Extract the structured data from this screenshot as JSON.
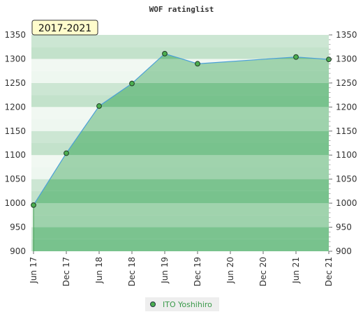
{
  "chart_data": {
    "type": "area",
    "title": "WOF ratinglist",
    "period_label": "2017-2021",
    "categories": [
      "Jun 17",
      "Dec 17",
      "Jun 18",
      "Dec 18",
      "Jun 19",
      "Dec 19",
      "Jun 20",
      "Dec 20",
      "Jun 21",
      "Dec 21"
    ],
    "ylim": [
      900,
      1350
    ],
    "y_ticks": [
      900,
      950,
      1000,
      1050,
      1100,
      1150,
      1200,
      1250,
      1300,
      1350
    ],
    "y_tick_labels": [
      "900",
      "950",
      "1000",
      "1050",
      "1100",
      "1150",
      "1200",
      "1250",
      "1300",
      "1350"
    ],
    "series": [
      {
        "name": "ITO Yoshihiro",
        "points": [
          {
            "x": 0,
            "y": 996
          },
          {
            "x": 1,
            "y": 1104
          },
          {
            "x": 2,
            "y": 1202
          },
          {
            "x": 3,
            "y": 1249
          },
          {
            "x": 4,
            "y": 1311
          },
          {
            "x": 5,
            "y": 1290
          },
          {
            "x": 8,
            "y": 1304
          },
          {
            "x": 9,
            "y": 1299
          }
        ]
      }
    ],
    "legend_position": "bottom-center",
    "grid": true,
    "colors": {
      "area_fill": "#5cb574",
      "line": "#4a9fd8",
      "marker": "#4caf50",
      "band_dark": "#c3e2cb",
      "band_light": "#eef7f0",
      "period_label_bg": "#fffccc"
    }
  }
}
